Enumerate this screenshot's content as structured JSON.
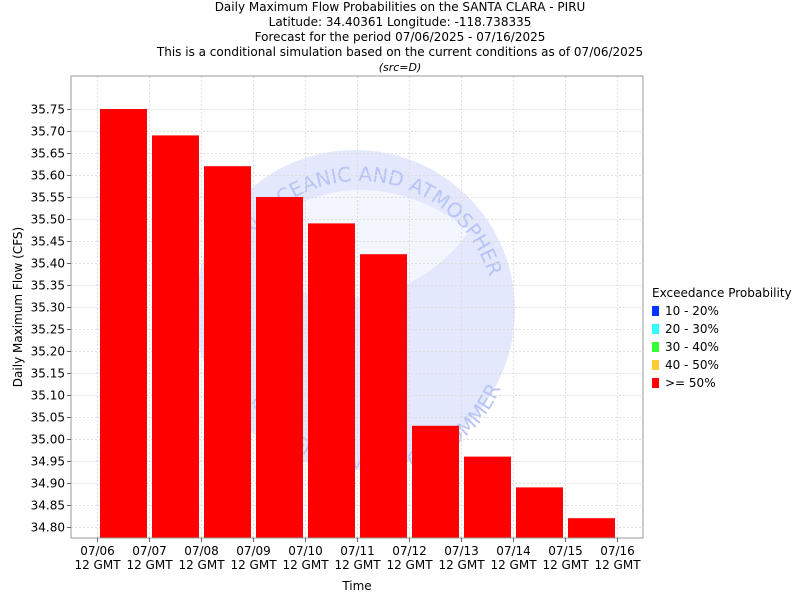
{
  "header": {
    "title": "Daily Maximum Flow Probabilities on the SANTA CLARA - PIRU",
    "location": "Latitude: 34.40361 Longitude: -118.738335",
    "period": "Forecast for the period 07/06/2025 - 07/16/2025",
    "note": "This is a conditional simulation based on the current conditions as of 07/06/2025",
    "source": "(src=D)"
  },
  "legend": {
    "title": "Exceedance Probability",
    "items": [
      {
        "label": "10 - 20%",
        "color": "#0033ff"
      },
      {
        "label": "20 - 30%",
        "color": "#33ffff"
      },
      {
        "label": "30 - 40%",
        "color": "#33ff33"
      },
      {
        "label": "40 - 50%",
        "color": "#ffcc33"
      },
      {
        "label": ">= 50%",
        "color": "#ff0000"
      }
    ]
  },
  "watermark": {
    "arc_text": "NATIONAL OCEANIC AND ATMOSPHERIC ADMINISTRATION",
    "bottom_text": "U.S. DEPARTMENT OF COMMERCE",
    "color": "#b8c4f6"
  },
  "chart_data": {
    "type": "bar",
    "xlabel": "Time",
    "ylabel": "Daily Maximum Flow (CFS)",
    "ylim": [
      34.775,
      35.825
    ],
    "yticks": [
      34.8,
      34.85,
      34.9,
      34.95,
      35.0,
      35.05,
      35.1,
      35.15,
      35.2,
      35.25,
      35.3,
      35.35,
      35.4,
      35.45,
      35.5,
      35.55,
      35.6,
      35.65,
      35.7,
      35.75
    ],
    "xticks": [
      {
        "date": "07/06",
        "time": "12 GMT"
      },
      {
        "date": "07/07",
        "time": "12 GMT"
      },
      {
        "date": "07/08",
        "time": "12 GMT"
      },
      {
        "date": "07/09",
        "time": "12 GMT"
      },
      {
        "date": "07/10",
        "time": "12 GMT"
      },
      {
        "date": "07/11",
        "time": "12 GMT"
      },
      {
        "date": "07/12",
        "time": "12 GMT"
      },
      {
        "date": "07/13",
        "time": "12 GMT"
      },
      {
        "date": "07/14",
        "time": "12 GMT"
      },
      {
        "date": "07/15",
        "time": "12 GMT"
      },
      {
        "date": "07/16",
        "time": "12 GMT"
      }
    ],
    "series": [
      {
        "name": ">= 50%",
        "color": "#ff0000",
        "values": [
          35.75,
          35.69,
          35.62,
          35.55,
          35.49,
          35.42,
          35.03,
          34.96,
          34.89,
          34.82
        ]
      }
    ],
    "grid": true,
    "legend_position": "right"
  }
}
